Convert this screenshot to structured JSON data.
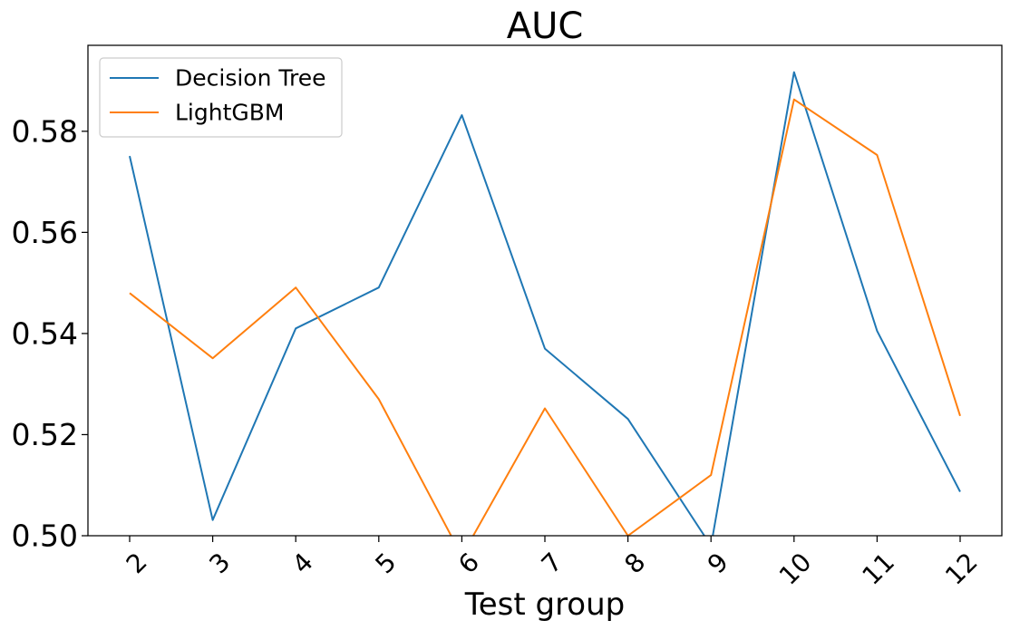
{
  "chart_data": {
    "type": "line",
    "title": "AUC",
    "xlabel": "Test group",
    "ylabel": "",
    "categories": [
      "2",
      "3",
      "4",
      "5",
      "6",
      "7",
      "8",
      "9",
      "10",
      "11",
      "12"
    ],
    "ylim": [
      0.5,
      0.597
    ],
    "yticks": [
      "0.50",
      "0.52",
      "0.54",
      "0.56",
      "0.58"
    ],
    "grid": false,
    "legend": "top-left",
    "series": [
      {
        "name": "Decision Tree",
        "color": "#1f77b4",
        "values": [
          0.5751,
          0.5031,
          0.541,
          0.5491,
          0.5832,
          0.537,
          0.5231,
          0.498,
          0.5917,
          0.5405,
          0.5087
        ]
      },
      {
        "name": "LightGBM",
        "color": "#ff7f0e",
        "values": [
          0.548,
          0.5351,
          0.5491,
          0.527,
          0.496,
          0.5252,
          0.5,
          0.512,
          0.5863,
          0.5753,
          0.5237
        ]
      }
    ]
  }
}
